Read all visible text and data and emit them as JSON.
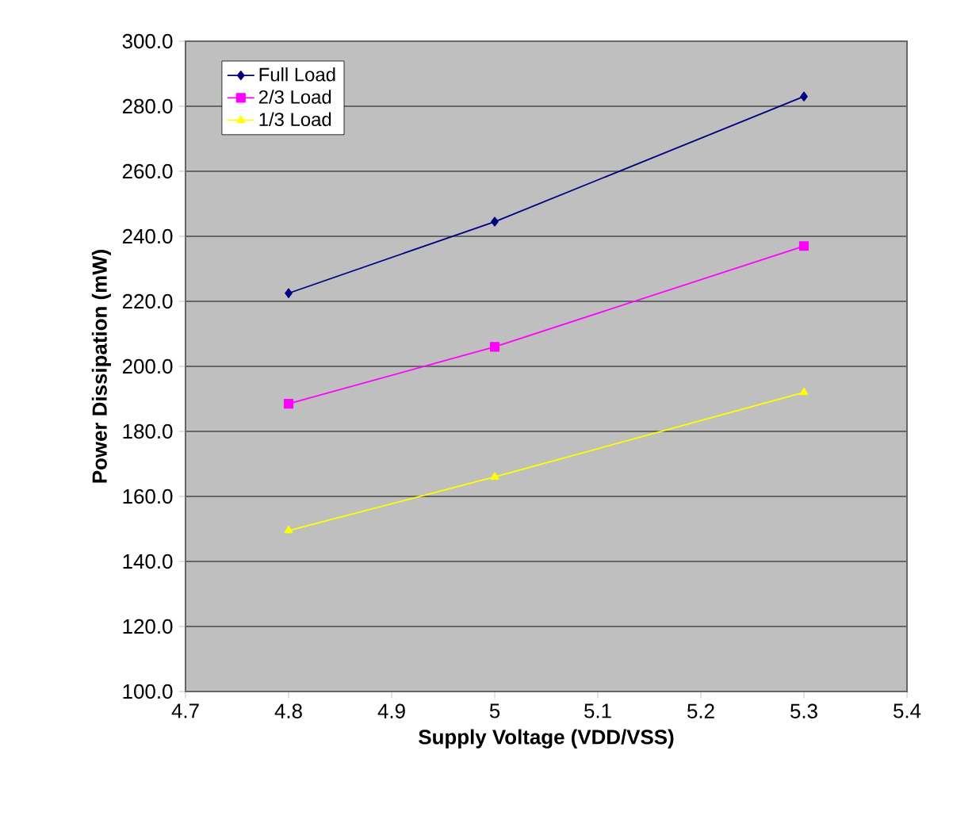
{
  "chart_data": {
    "type": "line",
    "xlabel": "Supply Voltage (VDD/VSS)",
    "ylabel": "Power Dissipation (mW)",
    "x": [
      4.8,
      5,
      5.3
    ],
    "series": [
      {
        "name": "Full Load",
        "color": "#000080",
        "values": [
          222.5,
          244.5,
          283.0
        ],
        "marker": "diamond"
      },
      {
        "name": "2/3 Load",
        "color": "#ff00ff",
        "values": [
          188.5,
          206.0,
          237.0
        ],
        "marker": "square"
      },
      {
        "name": "1/3 Load",
        "color": "#ffff00",
        "values": [
          149.5,
          166.0,
          192.0
        ],
        "marker": "triangle"
      }
    ],
    "xlim": [
      4.7,
      5.4
    ],
    "xticks": [
      4.7,
      4.8,
      4.9,
      5,
      5.1,
      5.2,
      5.3,
      5.4
    ],
    "ylim": [
      100,
      300
    ],
    "yticks": [
      {
        "value": 100,
        "label": "100.0"
      },
      {
        "value": 120,
        "label": "120.0"
      },
      {
        "value": 140,
        "label": "140.0"
      },
      {
        "value": 160,
        "label": "160.0"
      },
      {
        "value": 180,
        "label": "180.0"
      },
      {
        "value": 200,
        "label": "200.0"
      },
      {
        "value": 220,
        "label": "220.0"
      },
      {
        "value": 240,
        "label": "240.0"
      },
      {
        "value": 260,
        "label": "260.0"
      },
      {
        "value": 280,
        "label": "280.0"
      },
      {
        "value": 300,
        "label": "300.0"
      }
    ],
    "grid": "y",
    "legend": "top left"
  }
}
